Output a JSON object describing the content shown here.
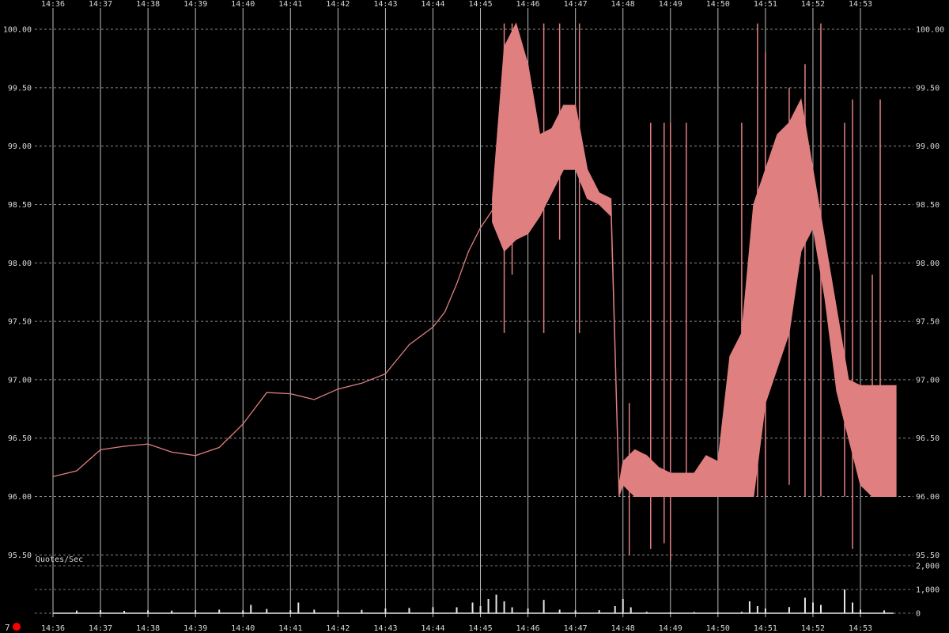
{
  "chart_data": {
    "type": "line",
    "x_ticks": [
      "14:36",
      "14:37",
      "14:38",
      "14:39",
      "14:40",
      "14:41",
      "14:42",
      "14:43",
      "14:44",
      "14:45",
      "14:46",
      "14:47",
      "14:48",
      "14:49",
      "14:50",
      "14:51",
      "14:52",
      "14:53"
    ],
    "y_ticks": [
      "100.00",
      "99.50",
      "99.00",
      "98.50",
      "98.00",
      "97.50",
      "97.00",
      "96.50",
      "96.00",
      "95.50"
    ],
    "ylim": [
      95.5,
      100.1
    ],
    "grid": true,
    "price_color": "#e07f80",
    "price_line": {
      "x": [
        "14:36",
        "14:36:30",
        "14:37",
        "14:37:30",
        "14:38",
        "14:38:30",
        "14:39",
        "14:39:30",
        "14:40",
        "14:40:30",
        "14:41",
        "14:41:30",
        "14:42",
        "14:42:30",
        "14:43",
        "14:43:30",
        "14:44",
        "14:44:15",
        "14:44:30",
        "14:44:45",
        "14:45",
        "14:45:15"
      ],
      "y": [
        96.17,
        96.22,
        96.4,
        96.43,
        96.45,
        96.38,
        96.35,
        96.42,
        96.62,
        96.89,
        96.88,
        96.83,
        96.92,
        96.97,
        97.05,
        97.3,
        97.45,
        97.58,
        97.82,
        98.1,
        98.3,
        98.45
      ]
    },
    "price_range": {
      "x": [
        "14:45:15",
        "14:45:30",
        "14:45:45",
        "14:46",
        "14:46:15",
        "14:46:30",
        "14:46:45",
        "14:47",
        "14:47:15",
        "14:47:30",
        "14:47:45",
        "14:47:55",
        "14:48",
        "14:48:15",
        "14:48:30",
        "14:48:45",
        "14:49",
        "14:49:15",
        "14:49:30",
        "14:49:45",
        "14:50",
        "14:50:15",
        "14:50:30",
        "14:50:45",
        "14:51",
        "14:51:15",
        "14:51:30",
        "14:51:45",
        "14:52",
        "14:52:15",
        "14:52:30",
        "14:52:45",
        "14:53",
        "14:53:15",
        "14:53:30",
        "14:53:45"
      ],
      "low": [
        98.35,
        98.1,
        98.2,
        98.25,
        98.4,
        98.6,
        98.8,
        98.8,
        98.55,
        98.5,
        98.4,
        96.0,
        96.1,
        96.0,
        96.0,
        96.0,
        96.0,
        96.0,
        96.0,
        96.0,
        96.0,
        96.0,
        96.0,
        96.0,
        96.8,
        97.1,
        97.4,
        98.1,
        98.3,
        97.7,
        96.9,
        96.5,
        96.1,
        96.0,
        96.0,
        96.0
      ],
      "high": [
        98.55,
        99.85,
        100.05,
        99.7,
        99.1,
        99.15,
        99.35,
        99.35,
        98.8,
        98.6,
        98.55,
        96.1,
        96.3,
        96.4,
        96.35,
        96.25,
        96.2,
        96.2,
        96.2,
        96.35,
        96.3,
        97.2,
        97.4,
        98.5,
        98.8,
        99.1,
        99.2,
        99.4,
        98.8,
        98.2,
        97.6,
        97.0,
        96.95,
        96.95,
        96.95,
        96.95
      ]
    },
    "price_spikes": [
      {
        "x": "14:45:30",
        "low": 97.4,
        "high": 100.05
      },
      {
        "x": "14:45:40",
        "low": 97.9,
        "high": 100.05
      },
      {
        "x": "14:46:20",
        "low": 97.4,
        "high": 100.05
      },
      {
        "x": "14:46:40",
        "low": 98.2,
        "high": 100.05
      },
      {
        "x": "14:47:05",
        "low": 97.4,
        "high": 100.05
      },
      {
        "x": "14:48:08",
        "low": 95.5,
        "high": 96.8
      },
      {
        "x": "14:48:35",
        "low": 95.55,
        "high": 99.2
      },
      {
        "x": "14:48:52",
        "low": 95.6,
        "high": 99.2
      },
      {
        "x": "14:49:00",
        "low": 95.45,
        "high": 99.2
      },
      {
        "x": "14:49:20",
        "low": 96.0,
        "high": 99.2
      },
      {
        "x": "14:50:30",
        "low": 96.0,
        "high": 99.2
      },
      {
        "x": "14:50:50",
        "low": 96.0,
        "high": 100.05
      },
      {
        "x": "14:51:00",
        "low": 96.0,
        "high": 99.8
      },
      {
        "x": "14:51:30",
        "low": 96.1,
        "high": 99.5
      },
      {
        "x": "14:51:50",
        "low": 96.0,
        "high": 99.7
      },
      {
        "x": "14:52:10",
        "low": 96.0,
        "high": 100.05
      },
      {
        "x": "14:52:40",
        "low": 96.0,
        "high": 99.2
      },
      {
        "x": "14:52:50",
        "low": 95.55,
        "high": 99.4
      },
      {
        "x": "14:53:15",
        "low": 96.0,
        "high": 97.9
      },
      {
        "x": "14:53:25",
        "low": 96.0,
        "high": 99.4
      }
    ],
    "volume_panel": {
      "label": "Quotes/Sec",
      "y_ticks": [
        "2,000",
        "1,000",
        "0"
      ],
      "ylim": [
        0,
        2000
      ],
      "bar_color": "#e6e6e6",
      "bars": [
        {
          "x": "14:36:30",
          "v": 110
        },
        {
          "x": "14:37:00",
          "v": 130
        },
        {
          "x": "14:37:30",
          "v": 100
        },
        {
          "x": "14:38:00",
          "v": 120
        },
        {
          "x": "14:38:30",
          "v": 110
        },
        {
          "x": "14:39:00",
          "v": 130
        },
        {
          "x": "14:39:30",
          "v": 150
        },
        {
          "x": "14:40:00",
          "v": 120
        },
        {
          "x": "14:40:10",
          "v": 350
        },
        {
          "x": "14:40:30",
          "v": 180
        },
        {
          "x": "14:41:00",
          "v": 130
        },
        {
          "x": "14:41:10",
          "v": 450
        },
        {
          "x": "14:41:30",
          "v": 150
        },
        {
          "x": "14:42:00",
          "v": 120
        },
        {
          "x": "14:42:30",
          "v": 140
        },
        {
          "x": "14:43:00",
          "v": 200
        },
        {
          "x": "14:43:30",
          "v": 220
        },
        {
          "x": "14:44:00",
          "v": 260
        },
        {
          "x": "14:44:30",
          "v": 250
        },
        {
          "x": "14:44:50",
          "v": 450
        },
        {
          "x": "14:45:00",
          "v": 300
        },
        {
          "x": "14:45:10",
          "v": 600
        },
        {
          "x": "14:45:20",
          "v": 780
        },
        {
          "x": "14:45:30",
          "v": 500
        },
        {
          "x": "14:45:40",
          "v": 250
        },
        {
          "x": "14:46:00",
          "v": 200
        },
        {
          "x": "14:46:20",
          "v": 560
        },
        {
          "x": "14:46:40",
          "v": 150
        },
        {
          "x": "14:47:00",
          "v": 120
        },
        {
          "x": "14:47:30",
          "v": 130
        },
        {
          "x": "14:47:50",
          "v": 300
        },
        {
          "x": "14:48:00",
          "v": 600
        },
        {
          "x": "14:48:10",
          "v": 250
        },
        {
          "x": "14:48:30",
          "v": 60
        },
        {
          "x": "14:49:00",
          "v": 40
        },
        {
          "x": "14:49:30",
          "v": 50
        },
        {
          "x": "14:50:00",
          "v": 40
        },
        {
          "x": "14:50:30",
          "v": 60
        },
        {
          "x": "14:50:40",
          "v": 500
        },
        {
          "x": "14:50:50",
          "v": 300
        },
        {
          "x": "14:51:00",
          "v": 200
        },
        {
          "x": "14:51:30",
          "v": 260
        },
        {
          "x": "14:51:50",
          "v": 650
        },
        {
          "x": "14:52:00",
          "v": 450
        },
        {
          "x": "14:52:10",
          "v": 350
        },
        {
          "x": "14:52:40",
          "v": 1000
        },
        {
          "x": "14:52:50",
          "v": 450
        },
        {
          "x": "14:53:00",
          "v": 150
        },
        {
          "x": "14:53:30",
          "v": 120
        }
      ]
    }
  },
  "corner": {
    "count": "7",
    "indicator_color": "#ff0000"
  }
}
